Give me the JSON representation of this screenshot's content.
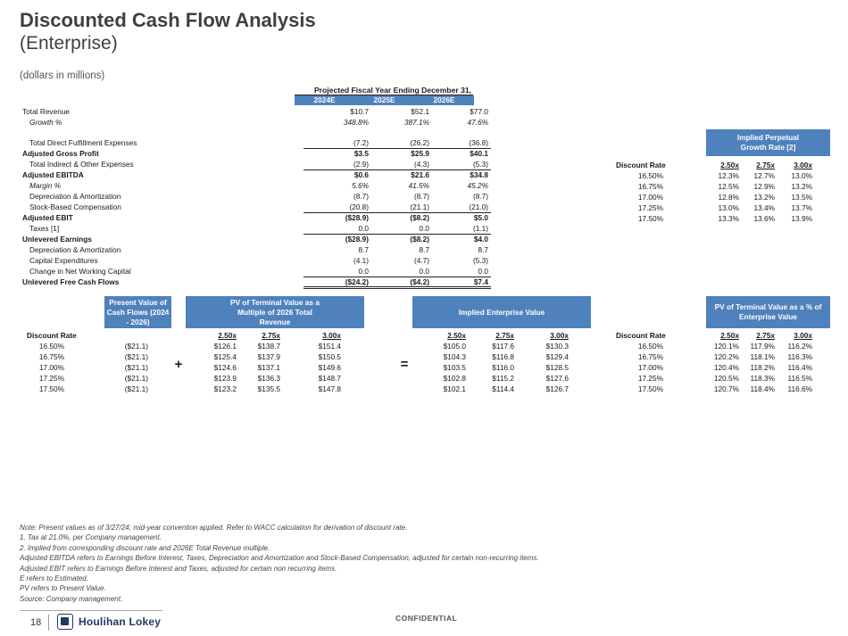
{
  "title": "Discounted Cash Flow Analysis",
  "subtitle": "(Enterprise)",
  "units": "(dollars in millions)",
  "projection": {
    "header": "Projected Fiscal Year Ending December 31,",
    "years": [
      "2024E",
      "2025E",
      "2026E"
    ],
    "rows": [
      {
        "label": "Total Revenue",
        "values": [
          "$10.7",
          "$52.1",
          "$77.0"
        ],
        "style": "normal"
      },
      {
        "label": "Growth %",
        "values": [
          "348.8%",
          "387.1%",
          "47.6%"
        ],
        "style": "italic-indent"
      },
      {
        "label": "Total Direct Fulfillment Expenses",
        "values": [
          "(7.2)",
          "(26.2)",
          "(36.8)"
        ],
        "style": "indent"
      },
      {
        "label": "Adjusted Gross Profit",
        "values": [
          "$3.5",
          "$25.9",
          "$40.1"
        ],
        "style": "bold"
      },
      {
        "label": "Total Indirect & Other Expenses",
        "values": [
          "(2.9)",
          "(4.3)",
          "(5.3)"
        ],
        "style": "indent"
      },
      {
        "label": "Adjusted EBITDA",
        "values": [
          "$0.6",
          "$21.6",
          "$34.8"
        ],
        "style": "bold"
      },
      {
        "label": "Margin %",
        "values": [
          "5.6%",
          "41.5%",
          "45.2%"
        ],
        "style": "italic-indent"
      },
      {
        "label": "Depreciation & Amortization",
        "values": [
          "(8.7)",
          "(8.7)",
          "(8.7)"
        ],
        "style": "indent"
      },
      {
        "label": "Stock-Based Compensation",
        "values": [
          "(20.8)",
          "(21.1)",
          "(21.0)"
        ],
        "style": "indent"
      },
      {
        "label": "Adjusted EBIT",
        "values": [
          "($28.9)",
          "($8.2)",
          "$5.0"
        ],
        "style": "bold"
      },
      {
        "label": "Taxes [1]",
        "values": [
          "0.0",
          "0.0",
          "(1.1)"
        ],
        "style": "indent"
      },
      {
        "label": "Unlevered Earnings",
        "values": [
          "($28.9)",
          "($8.2)",
          "$4.0"
        ],
        "style": "bold"
      },
      {
        "label": "Depreciation & Amortization",
        "values": [
          "8.7",
          "8.7",
          "8.7"
        ],
        "style": "indent"
      },
      {
        "label": "Capital Expenditures",
        "values": [
          "(4.1)",
          "(4.7)",
          "(5.3)"
        ],
        "style": "indent"
      },
      {
        "label": "Change in Net Working Capital",
        "values": [
          "0.0",
          "0.0",
          "0.0"
        ],
        "style": "indent"
      },
      {
        "label": "Unlevered Free Cash Flows",
        "values": [
          "($24.2)",
          "($4.2)",
          "$7.4"
        ],
        "style": "bold"
      }
    ]
  },
  "growth_table": {
    "header": "Implied Perpetual Growth Rate [2]",
    "col_label": "Discount Rate",
    "multiples": [
      "2.50x",
      "2.75x",
      "3.00x"
    ],
    "rows": [
      {
        "rate": "16.50%",
        "values": [
          "12.3%",
          "12.7%",
          "13.0%"
        ]
      },
      {
        "rate": "16.75%",
        "values": [
          "12.5%",
          "12.9%",
          "13.2%"
        ]
      },
      {
        "rate": "17.00%",
        "values": [
          "12.8%",
          "13.2%",
          "13.5%"
        ]
      },
      {
        "rate": "17.25%",
        "values": [
          "13.0%",
          "13.4%",
          "13.7%"
        ]
      },
      {
        "rate": "17.50%",
        "values": [
          "13.3%",
          "13.6%",
          "13.9%"
        ]
      }
    ]
  },
  "bottom": {
    "discount_label": "Discount Rate",
    "rates": [
      "16.50%",
      "16.75%",
      "17.00%",
      "17.25%",
      "17.50%"
    ],
    "pv_cf_header": "Present Value of Cash Flows (2024 - 2026)",
    "pv_cf": [
      "($21.1)",
      "($21.1)",
      "($21.1)",
      "($21.1)",
      "($21.1)"
    ],
    "plus": "+",
    "equals": "=",
    "pv_tv_header": "PV of Terminal Value as a Multiple of 2026 Total Revenue",
    "multiples": [
      "2.50x",
      "2.75x",
      "3.00x"
    ],
    "pv_tv": [
      [
        "$126.1",
        "$138.7",
        "$151.4"
      ],
      [
        "$125.4",
        "$137.9",
        "$150.5"
      ],
      [
        "$124.6",
        "$137.1",
        "$149.6"
      ],
      [
        "$123.9",
        "$136.3",
        "$148.7"
      ],
      [
        "$123.2",
        "$135.5",
        "$147.8"
      ]
    ],
    "ev_header": "Implied Enterprise Value",
    "ev": [
      [
        "$105.0",
        "$117.6",
        "$130.3"
      ],
      [
        "$104.3",
        "$116.8",
        "$129.4"
      ],
      [
        "$103.5",
        "$116.0",
        "$128.5"
      ],
      [
        "$102.8",
        "$115.2",
        "$127.6"
      ],
      [
        "$102.1",
        "$114.4",
        "$126.7"
      ]
    ],
    "pct_header": "PV of Terminal Value as a % of Enterprise Value",
    "pct": [
      [
        "120.1%",
        "117.9%",
        "116.2%"
      ],
      [
        "120.2%",
        "118.1%",
        "116.3%"
      ],
      [
        "120.4%",
        "118.2%",
        "116.4%"
      ],
      [
        "120.5%",
        "118.3%",
        "116.5%"
      ],
      [
        "120.7%",
        "118.4%",
        "116.6%"
      ]
    ]
  },
  "notes": [
    "Note: Present values as of 3/27/24; mid-year convention applied. Refer to WACC calculation for derivation of discount rate.",
    "1.  Tax at 21.0%, per Company management.",
    "2.  Implied from corresponding discount rate and 2026E Total Revenue multiple.",
    "Adjusted EBITDA refers to Earnings Before Interest, Taxes, Depreciation and Amortization and Stock-Based Compensation, adjusted for certain non-recurring items.",
    "Adjusted EBIT refers to Earnings Before Interest and Taxes, adjusted for certain non recurring items.",
    "E refers to Estimated.",
    "PV refers to Present Value.",
    "Source: Company management."
  ],
  "footer": {
    "page_number": "18",
    "logo_text": "Houlihan Lokey",
    "confidential": "CONFIDENTIAL"
  },
  "colors": {
    "header_blue": "#4f81bd",
    "title_gray": "#404040",
    "logo_navy": "#1f3864"
  }
}
